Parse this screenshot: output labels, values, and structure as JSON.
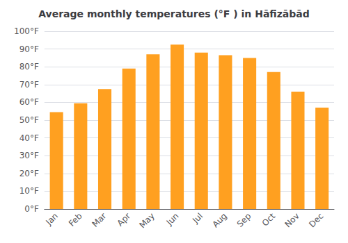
{
  "chart_data": {
    "type": "bar",
    "title": "Average monthly temperatures (°F ) in Hāfizābād",
    "categories": [
      "Jan",
      "Feb",
      "Mar",
      "Apr",
      "May",
      "Jun",
      "Jul",
      "Aug",
      "Sep",
      "Oct",
      "Nov",
      "Dec"
    ],
    "values": [
      54.5,
      59.5,
      67.5,
      79.0,
      87.0,
      92.5,
      88.0,
      86.5,
      85.0,
      77.0,
      66.0,
      57.0
    ],
    "color": "#FFA020",
    "ylim": [
      0,
      100
    ],
    "yticks": [
      {
        "value": 0,
        "label": "0°F"
      },
      {
        "value": 10,
        "label": "10°F"
      },
      {
        "value": 20,
        "label": "20°F"
      },
      {
        "value": 30,
        "label": "30°F"
      },
      {
        "value": 40,
        "label": "40°F"
      },
      {
        "value": 50,
        "label": "50°F"
      },
      {
        "value": 60,
        "label": "60°F"
      },
      {
        "value": 70,
        "label": "70°F"
      },
      {
        "value": 80,
        "label": "80°F"
      },
      {
        "value": 90,
        "label": "90°F"
      },
      {
        "value": 100,
        "label": "100°F"
      }
    ],
    "grid": true
  }
}
